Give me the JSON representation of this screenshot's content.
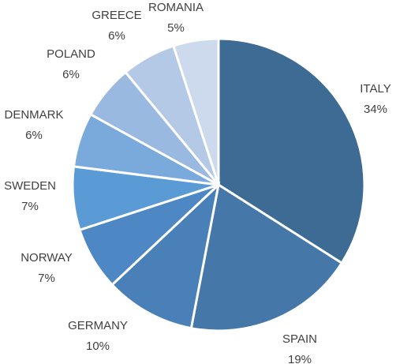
{
  "chart_data": {
    "type": "pie",
    "categories": [
      "ITALY",
      "SPAIN",
      "GERMANY",
      "NORWAY",
      "SWEDEN",
      "DENMARK",
      "POLAND",
      "GREECE",
      "ROMANIA"
    ],
    "values": [
      34,
      19,
      10,
      7,
      7,
      6,
      6,
      6,
      5
    ],
    "value_labels": [
      "34%",
      "19%",
      "10%",
      "7%",
      "7%",
      "6%",
      "6%",
      "6%",
      "5%"
    ],
    "colors": [
      "#3e6b94",
      "#4577a8",
      "#4a80b8",
      "#4d88c4",
      "#5a9bd5",
      "#7aa9dc",
      "#9ab9e0",
      "#b4c9e6",
      "#cddaee"
    ]
  }
}
